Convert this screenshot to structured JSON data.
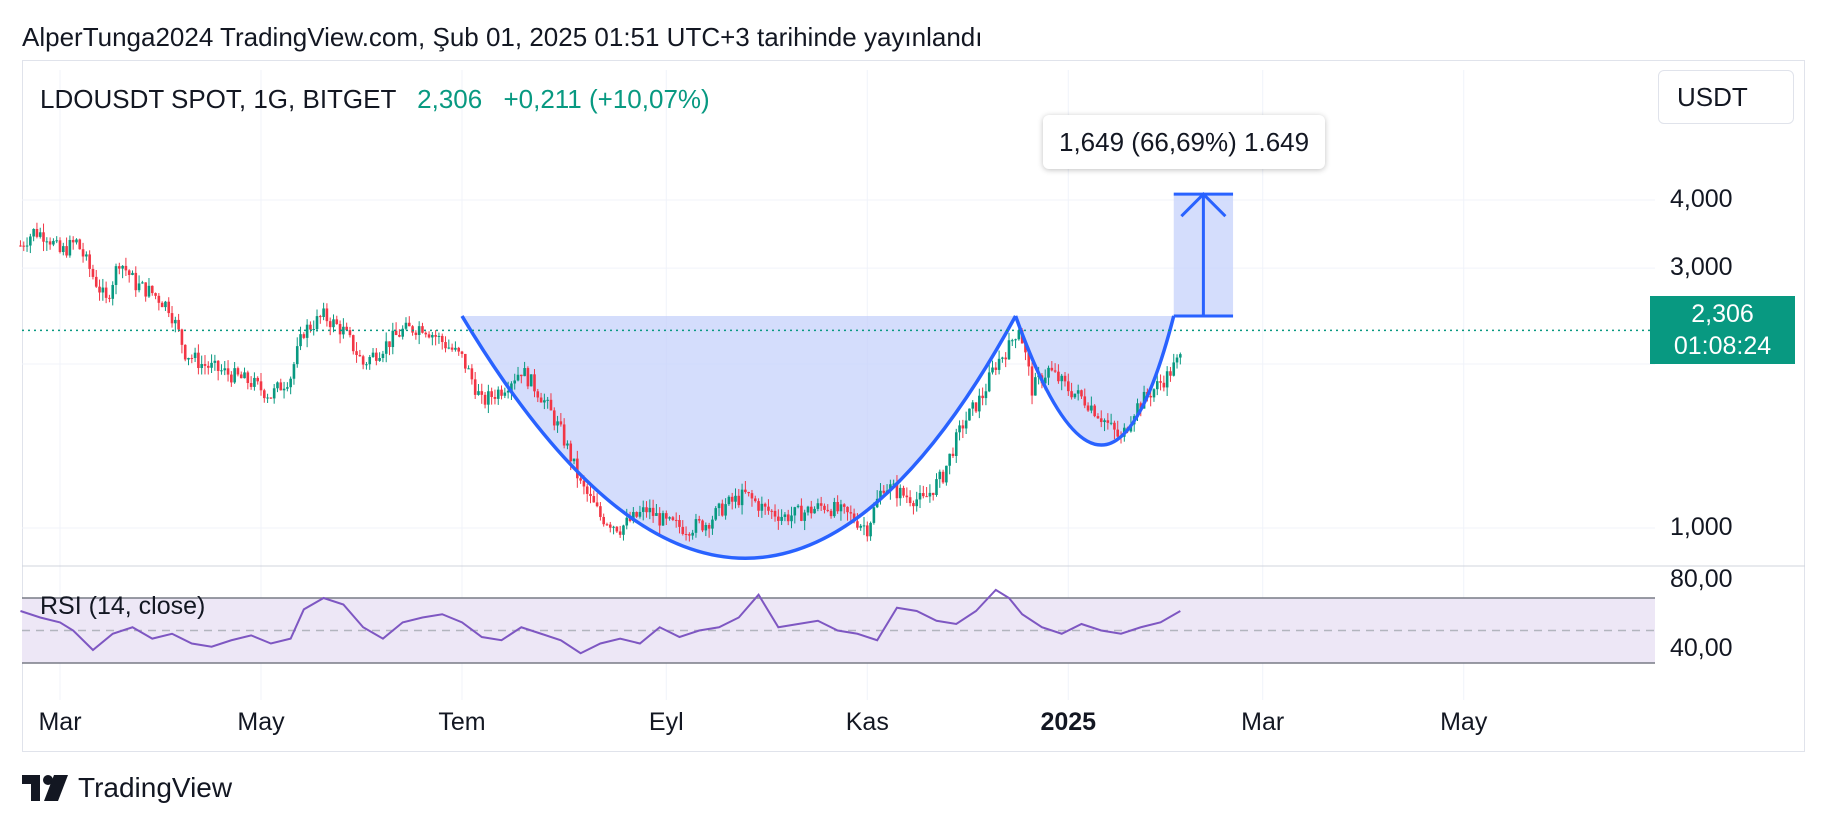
{
  "header": {
    "publish_line": "AlperTunga2024 TradingView.com, Şub 01, 2025 01:51 UTC+3 tarihinde yayınlandı"
  },
  "symbol": {
    "name": "LDOUSDT SPOT, 1G, BITGET",
    "price": "2,306",
    "change": "+0,211 (+10,07%)"
  },
  "currency": "USDT",
  "measure": {
    "label": "1,649 (66,69%) 1.649"
  },
  "price_tag": {
    "price": "2,306",
    "countdown": "01:08:24"
  },
  "rsi": {
    "label": "RSI (14, close)"
  },
  "footer": {
    "brand": "TradingView"
  },
  "colors": {
    "up": "#089981",
    "down": "#f23645",
    "pattern": "#2962ff",
    "fill": "#c5d2fb",
    "rsi": "#7e57c2",
    "rsi_band": "#ede7f6"
  },
  "chart_data": {
    "type": "candlestick",
    "x_labels": [
      {
        "label": "Mar",
        "t": 0
      },
      {
        "label": "May",
        "t": 61
      },
      {
        "label": "Tem",
        "t": 122
      },
      {
        "label": "Eyl",
        "t": 184
      },
      {
        "label": "Kas",
        "t": 245
      },
      {
        "label": "2025",
        "t": 306,
        "bold": true
      },
      {
        "label": "Mar",
        "t": 365
      },
      {
        "label": "May",
        "t": 426
      }
    ],
    "y_scale": "log",
    "y_ticks": [
      {
        "label": "4,000",
        "value": 4.0
      },
      {
        "label": "3,000",
        "value": 3.0
      },
      {
        "label": "1,000",
        "value": 1.0
      }
    ],
    "current_price": 2.306,
    "price_path": [
      [
        -12,
        3.3
      ],
      [
        -8,
        3.5
      ],
      [
        -4,
        3.45
      ],
      [
        0,
        3.2
      ],
      [
        5,
        3.35
      ],
      [
        10,
        2.9
      ],
      [
        14,
        2.6
      ],
      [
        18,
        3.1
      ],
      [
        23,
        2.8
      ],
      [
        28,
        2.7
      ],
      [
        33,
        2.55
      ],
      [
        38,
        2.1
      ],
      [
        43,
        2.0
      ],
      [
        48,
        1.95
      ],
      [
        53,
        1.9
      ],
      [
        58,
        1.85
      ],
      [
        64,
        1.75
      ],
      [
        70,
        1.9
      ],
      [
        74,
        2.3
      ],
      [
        80,
        2.45
      ],
      [
        86,
        2.3
      ],
      [
        92,
        2.0
      ],
      [
        98,
        2.15
      ],
      [
        104,
        2.3
      ],
      [
        110,
        2.35
      ],
      [
        116,
        2.2
      ],
      [
        122,
        2.05
      ],
      [
        128,
        1.7
      ],
      [
        134,
        1.8
      ],
      [
        140,
        1.95
      ],
      [
        146,
        1.75
      ],
      [
        152,
        1.5
      ],
      [
        158,
        1.2
      ],
      [
        164,
        1.05
      ],
      [
        170,
        1.0
      ],
      [
        178,
        1.08
      ],
      [
        184,
        1.02
      ],
      [
        190,
        1.0
      ],
      [
        196,
        1.02
      ],
      [
        202,
        1.1
      ],
      [
        208,
        1.15
      ],
      [
        214,
        1.08
      ],
      [
        220,
        1.05
      ],
      [
        226,
        1.07
      ],
      [
        232,
        1.1
      ],
      [
        240,
        1.05
      ],
      [
        245,
        1.0
      ],
      [
        250,
        1.2
      ],
      [
        256,
        1.15
      ],
      [
        262,
        1.12
      ],
      [
        268,
        1.25
      ],
      [
        274,
        1.55
      ],
      [
        280,
        1.75
      ],
      [
        284,
        2.0
      ],
      [
        288,
        2.15
      ],
      [
        291,
        2.35
      ],
      [
        295,
        1.8
      ],
      [
        300,
        1.95
      ],
      [
        306,
        1.8
      ],
      [
        312,
        1.7
      ],
      [
        318,
        1.55
      ],
      [
        322,
        1.45
      ],
      [
        326,
        1.65
      ],
      [
        330,
        1.75
      ],
      [
        336,
        1.9
      ],
      [
        340,
        2.05
      ]
    ],
    "rsi_path": [
      [
        -12,
        62
      ],
      [
        -6,
        58
      ],
      [
        0,
        55
      ],
      [
        4,
        50
      ],
      [
        10,
        38
      ],
      [
        16,
        48
      ],
      [
        22,
        52
      ],
      [
        28,
        45
      ],
      [
        34,
        48
      ],
      [
        40,
        42
      ],
      [
        46,
        40
      ],
      [
        52,
        44
      ],
      [
        58,
        47
      ],
      [
        64,
        42
      ],
      [
        70,
        45
      ],
      [
        74,
        63
      ],
      [
        80,
        70
      ],
      [
        86,
        66
      ],
      [
        92,
        52
      ],
      [
        98,
        45
      ],
      [
        104,
        55
      ],
      [
        110,
        58
      ],
      [
        116,
        60
      ],
      [
        122,
        55
      ],
      [
        128,
        46
      ],
      [
        134,
        44
      ],
      [
        140,
        52
      ],
      [
        146,
        48
      ],
      [
        152,
        44
      ],
      [
        158,
        36
      ],
      [
        164,
        42
      ],
      [
        170,
        45
      ],
      [
        176,
        42
      ],
      [
        182,
        52
      ],
      [
        188,
        46
      ],
      [
        194,
        50
      ],
      [
        200,
        52
      ],
      [
        206,
        58
      ],
      [
        212,
        72
      ],
      [
        218,
        52
      ],
      [
        224,
        54
      ],
      [
        230,
        56
      ],
      [
        236,
        50
      ],
      [
        242,
        48
      ],
      [
        248,
        44
      ],
      [
        254,
        64
      ],
      [
        260,
        62
      ],
      [
        266,
        56
      ],
      [
        272,
        54
      ],
      [
        278,
        62
      ],
      [
        284,
        75
      ],
      [
        288,
        70
      ],
      [
        292,
        60
      ],
      [
        298,
        52
      ],
      [
        304,
        48
      ],
      [
        310,
        54
      ],
      [
        316,
        50
      ],
      [
        322,
        48
      ],
      [
        328,
        52
      ],
      [
        334,
        55
      ],
      [
        340,
        62
      ]
    ],
    "rsi_scale": {
      "ticks": [
        {
          "label": "80,00",
          "value": 80
        },
        {
          "label": "40,00",
          "value": 40
        }
      ],
      "upper": 70,
      "lower": 30,
      "mid": 50
    },
    "cup": {
      "rim_start": [
        122,
        2.45
      ],
      "rim_end": [
        290,
        2.45
      ],
      "bottom": [
        210,
        0.88
      ]
    },
    "handle": {
      "start": [
        290,
        2.45
      ],
      "end": [
        338,
        2.45
      ],
      "bottom": [
        318,
        1.42
      ]
    },
    "target": {
      "from": 2.45,
      "to": 4.1,
      "t_left": 338,
      "t_right": 356
    }
  }
}
